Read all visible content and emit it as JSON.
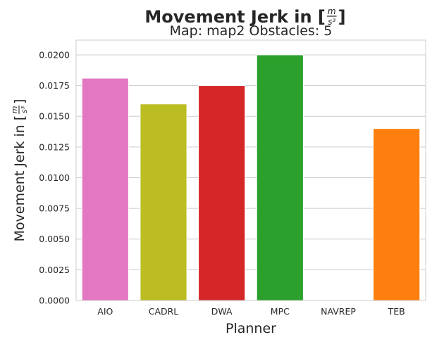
{
  "chart_data": {
    "type": "bar",
    "title": "Movement Jerk in [",
    "title_unit_numerator": "m",
    "title_unit_denominator": "s³",
    "title_close": "]",
    "subtitle": "Map: map2 Obstacles: 5",
    "xlabel": "Planner",
    "ylabel": "Movement Jerk in [",
    "ylabel_unit_numerator": "m",
    "ylabel_unit_denominator": "s³",
    "ylabel_close": "]",
    "categories": [
      "AIO",
      "CADRL",
      "DWA",
      "MPC",
      "NAVREP",
      "TEB"
    ],
    "values": [
      0.0181,
      0.016,
      0.0175,
      0.02,
      null,
      0.014
    ],
    "colors": [
      "#e377c2",
      "#bcbd22",
      "#d62728",
      "#2ca02c",
      "#8c564b",
      "#ff7f0e"
    ],
    "ylim": [
      0,
      0.0212
    ],
    "yticks": [
      0.0,
      0.0025,
      0.005,
      0.0075,
      0.01,
      0.0125,
      0.015,
      0.0175,
      0.02
    ],
    "ytick_labels": [
      "0.0000",
      "0.0025",
      "0.0050",
      "0.0075",
      "0.0100",
      "0.0125",
      "0.0150",
      "0.0175",
      "0.0200"
    ],
    "grid": true,
    "grid_axis": "y"
  }
}
